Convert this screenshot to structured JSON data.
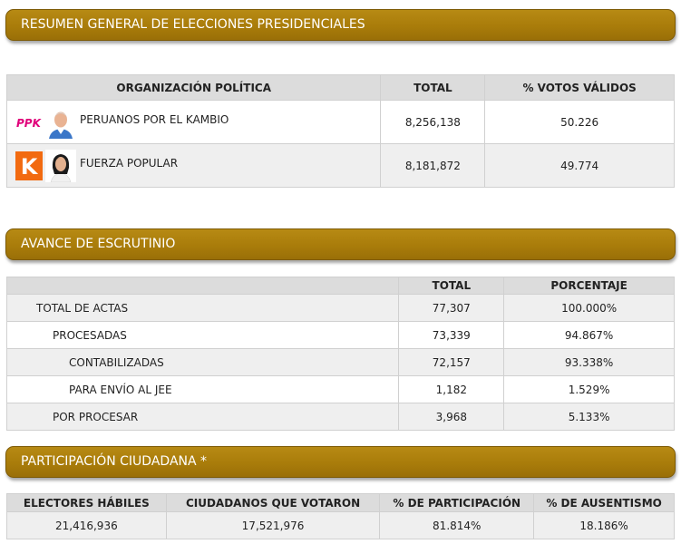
{
  "sections": {
    "summary_title": "RESUMEN GENERAL DE ELECCIONES PRESIDENCIALES",
    "progress_title": "AVANCE DE ESCRUTINIO",
    "participation_title": "PARTICIPACIÓN CIUDADANA *"
  },
  "results": {
    "headers": {
      "org": "ORGANIZACIÓN POLÍTICA",
      "total": "TOTAL",
      "pct": "% VOTOS VÁLIDOS"
    },
    "rows": [
      {
        "logo_text": "PPK",
        "logo_icon": "ppk-logo-icon",
        "candidate_icon": "candidate-ppk-photo-icon",
        "name": "PERUANOS POR EL KAMBIO",
        "total": "8,256,138",
        "pct": "50.226"
      },
      {
        "logo_text": "K",
        "logo_icon": "fuerza-popular-logo-icon",
        "candidate_icon": "candidate-fp-photo-icon",
        "name": "FUERZA POPULAR",
        "total": "8,181,872",
        "pct": "49.774"
      }
    ]
  },
  "progress": {
    "headers": {
      "total": "TOTAL",
      "pct": "PORCENTAJE"
    },
    "rows": [
      {
        "label": "TOTAL DE ACTAS",
        "total": "77,307",
        "pct": "100.000%"
      },
      {
        "label": "PROCESADAS",
        "total": "73,339",
        "pct": "94.867%"
      },
      {
        "label": "CONTABILIZADAS",
        "total": "72,157",
        "pct": "93.338%"
      },
      {
        "label": "PARA ENVÍO AL JEE",
        "total": "1,182",
        "pct": "1.529%"
      },
      {
        "label": "POR PROCESAR",
        "total": "3,968",
        "pct": "5.133%"
      }
    ]
  },
  "participation": {
    "headers": {
      "electores": "ELECTORES HÁBILES",
      "votaron": "CIUDADANOS QUE VOTARON",
      "participacion": "% DE PARTICIPACIÓN",
      "ausentismo": "% DE AUSENTISMO"
    },
    "values": {
      "electores": "21,416,936",
      "votaron": "17,521,976",
      "participacion": "81.814%",
      "ausentismo": "18.186%"
    }
  },
  "colors": {
    "banner": "#a97c0a",
    "header_bg": "#dcdcdc",
    "row_alt": "#efefef",
    "ppk_magenta": "#e0007a",
    "ppk_cyan": "#00a0e0",
    "fp_orange": "#f26a10"
  }
}
